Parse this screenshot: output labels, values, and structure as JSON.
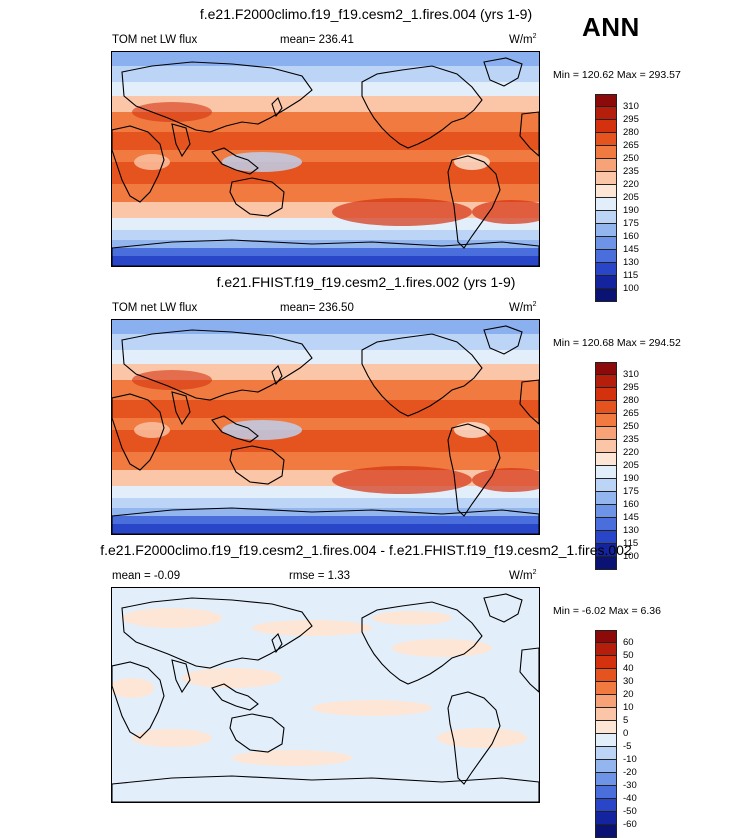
{
  "season": "ANN",
  "panels": [
    {
      "id": "test",
      "title": "f.e21.F2000climo.f19_f19.cesm2_1.fires.004 (yrs 1-9)",
      "left": "TOM net LW flux",
      "middle": "mean= 236.41",
      "units": "W/m",
      "units_exp": "2",
      "minmax": "Min = 120.62 Max = 293.57",
      "colorbar": {
        "labels": [
          "310",
          "295",
          "280",
          "265",
          "250",
          "235",
          "220",
          "205",
          "190",
          "175",
          "160",
          "145",
          "130",
          "115",
          "100"
        ],
        "colors": [
          "#8c0a0a",
          "#b51e0b",
          "#d4320f",
          "#e5541f",
          "#f07a40",
          "#f7a277",
          "#fbc6a8",
          "#fde6d6",
          "#e3eefb",
          "#bcd4f6",
          "#94b6ef",
          "#6d94e6",
          "#4a6fdc",
          "#2a46c8",
          "#14249f",
          "#0a1273"
        ]
      },
      "map_field": "positive"
    },
    {
      "id": "ref",
      "title": "f.e21.FHIST.f19_f19.cesm2_1.fires.002 (yrs 1-9)",
      "left": "TOM net LW flux",
      "middle": "mean= 236.50",
      "units": "W/m",
      "units_exp": "2",
      "minmax": "Min = 120.68 Max = 294.52",
      "colorbar": {
        "labels": [
          "310",
          "295",
          "280",
          "265",
          "250",
          "235",
          "220",
          "205",
          "190",
          "175",
          "160",
          "145",
          "130",
          "115",
          "100"
        ],
        "colors": [
          "#8c0a0a",
          "#b51e0b",
          "#d4320f",
          "#e5541f",
          "#f07a40",
          "#f7a277",
          "#fbc6a8",
          "#fde6d6",
          "#e3eefb",
          "#bcd4f6",
          "#94b6ef",
          "#6d94e6",
          "#4a6fdc",
          "#2a46c8",
          "#14249f",
          "#0a1273"
        ]
      },
      "map_field": "positive"
    },
    {
      "id": "diff",
      "title": "f.e21.F2000climo.f19_f19.cesm2_1.fires.004 - f.e21.FHIST.f19_f19.cesm2_1.fires.002",
      "left": "mean =  -0.09",
      "middle": "rmse =   1.33",
      "units": "W/m",
      "units_exp": "2",
      "minmax": "Min = -6.02 Max =  6.36",
      "colorbar": {
        "labels": [
          "60",
          "50",
          "40",
          "30",
          "20",
          "10",
          "5",
          "0",
          "-5",
          "-10",
          "-20",
          "-30",
          "-40",
          "-50",
          "-60"
        ],
        "colors": [
          "#8c0a0a",
          "#b51e0b",
          "#d4320f",
          "#e5541f",
          "#f07a40",
          "#f7a277",
          "#fbc6a8",
          "#fde6d6",
          "#e3eefb",
          "#bcd4f6",
          "#94b6ef",
          "#6d94e6",
          "#4a6fdc",
          "#2a46c8",
          "#14249f",
          "#0a1273"
        ]
      },
      "map_field": "difference"
    }
  ]
}
